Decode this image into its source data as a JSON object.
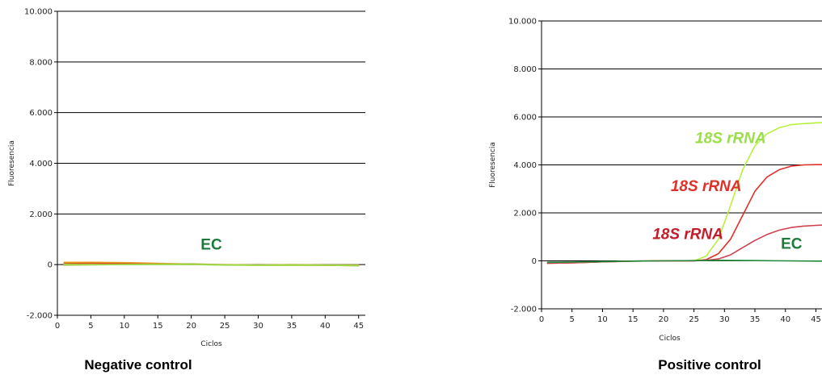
{
  "chart_data": [
    {
      "type": "line",
      "caption": "Negative control",
      "xlabel": "Ciclos",
      "ylabel": "Fluoresencia",
      "xlim": [
        0,
        46
      ],
      "ylim": [
        -2000,
        10000
      ],
      "xticks": [
        0,
        5,
        10,
        15,
        20,
        25,
        30,
        35,
        40,
        45
      ],
      "xtick_labels": [
        "0",
        "5",
        "10",
        "15",
        "20",
        "25",
        "30",
        "35",
        "40",
        "45"
      ],
      "yticks": [
        -2000,
        0,
        2000,
        4000,
        6000,
        8000,
        10000
      ],
      "ytick_labels": [
        "-2.000",
        "0",
        "2.000",
        "4.000",
        "6.000",
        "8.000",
        "10.000"
      ],
      "grid": "horizontal",
      "annotations": [
        {
          "text": "EC",
          "x": 23,
          "y": 600,
          "color": "#1e7a3a",
          "italic": false
        }
      ],
      "series": [
        {
          "color": "#e8a020",
          "x": [
            1,
            5,
            10,
            15,
            20,
            25,
            30,
            35,
            40,
            45
          ],
          "y": [
            90,
            90,
            80,
            50,
            20,
            -10,
            -20,
            -10,
            -20,
            -30
          ]
        },
        {
          "color": "#e05020",
          "x": [
            1,
            5,
            10,
            15,
            20,
            25,
            30,
            35,
            40,
            45
          ],
          "y": [
            40,
            50,
            40,
            20,
            10,
            -10,
            -20,
            -20,
            -30,
            -40
          ]
        },
        {
          "color": "#b0b030",
          "x": [
            1,
            5,
            10,
            15,
            20,
            25,
            30,
            35,
            40,
            45
          ],
          "y": [
            -20,
            -10,
            10,
            20,
            30,
            0,
            -10,
            0,
            -10,
            -10
          ]
        },
        {
          "color": "#9adf4a",
          "x": [
            1,
            5,
            10,
            15,
            20,
            25,
            30,
            35,
            40,
            45
          ],
          "y": [
            10,
            0,
            0,
            10,
            10,
            -20,
            -30,
            -30,
            -20,
            -50
          ]
        }
      ]
    },
    {
      "type": "line",
      "caption": "Positive control",
      "xlabel": "Ciclos",
      "ylabel": "Fluoresencia",
      "xlim": [
        0,
        46
      ],
      "ylim": [
        -2000,
        10000
      ],
      "xticks": [
        0,
        5,
        10,
        15,
        20,
        25,
        30,
        35,
        40,
        45
      ],
      "xtick_labels": [
        "0",
        "5",
        "10",
        "15",
        "20",
        "25",
        "30",
        "35",
        "40",
        "45"
      ],
      "yticks": [
        -2000,
        0,
        2000,
        4000,
        6000,
        8000,
        10000
      ],
      "ytick_labels": [
        "-2.000",
        "0",
        "2.000",
        "4.000",
        "6.000",
        "8.000",
        "10.000"
      ],
      "grid": "horizontal",
      "annotations": [
        {
          "text": "18S rRNA",
          "x": 31,
          "y": 4900,
          "color": "#9adf4a",
          "italic": true
        },
        {
          "text": "18S rRNA",
          "x": 27,
          "y": 2900,
          "color": "#e0302a",
          "italic": true
        },
        {
          "text": "18S rRNA",
          "x": 24,
          "y": 900,
          "color": "#c41c2a",
          "italic": true
        },
        {
          "text": "EC",
          "x": 41,
          "y": 500,
          "color": "#1e7a3a",
          "italic": false
        }
      ],
      "series": [
        {
          "color": "#b8f040",
          "x": [
            1,
            5,
            10,
            15,
            20,
            25,
            27,
            29,
            31,
            33,
            35,
            37,
            39,
            41,
            43,
            45,
            46
          ],
          "y": [
            -100,
            -80,
            -40,
            -10,
            0,
            0,
            200,
            900,
            2300,
            3800,
            4800,
            5300,
            5550,
            5680,
            5720,
            5750,
            5760
          ]
        },
        {
          "color": "#e0302a",
          "x": [
            1,
            5,
            10,
            15,
            20,
            25,
            27,
            29,
            31,
            33,
            35,
            37,
            39,
            41,
            43,
            45,
            46
          ],
          "y": [
            -100,
            -80,
            -40,
            -10,
            0,
            0,
            50,
            300,
            900,
            1900,
            2900,
            3500,
            3800,
            3950,
            4000,
            4010,
            4010
          ]
        },
        {
          "color": "#d04050",
          "x": [
            1,
            5,
            10,
            15,
            20,
            25,
            27,
            29,
            31,
            33,
            35,
            37,
            39,
            41,
            43,
            45,
            46
          ],
          "y": [
            -100,
            -80,
            -40,
            -10,
            0,
            0,
            20,
            80,
            250,
            550,
            850,
            1100,
            1280,
            1390,
            1450,
            1480,
            1490
          ]
        },
        {
          "color": "#1e8a3a",
          "x": [
            1,
            5,
            10,
            15,
            20,
            25,
            30,
            35,
            40,
            45,
            46
          ],
          "y": [
            -60,
            -50,
            -30,
            -10,
            0,
            10,
            20,
            10,
            0,
            -10,
            -10
          ]
        }
      ]
    }
  ]
}
